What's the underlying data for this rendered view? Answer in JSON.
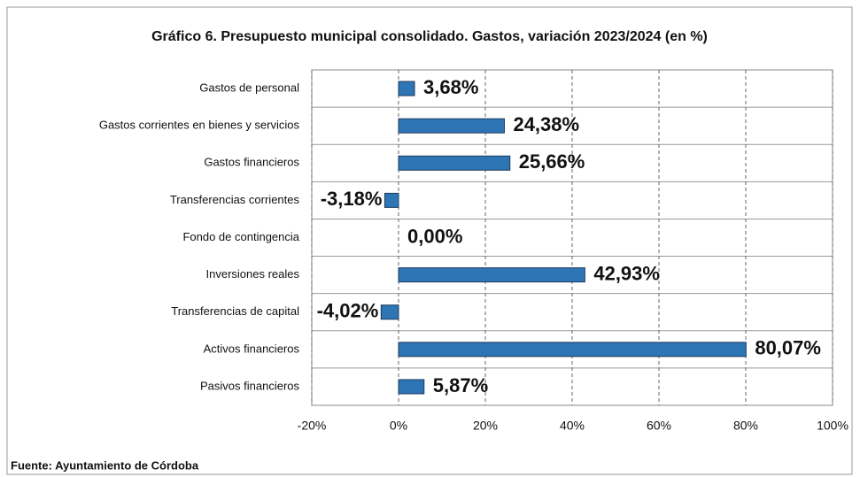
{
  "chart_data": {
    "type": "barh",
    "title": "Gráfico 6. Presupuesto municipal consolidado. Gastos, variación 2023/2024 (en %)",
    "source": "Fuente: Ayuntamiento de Córdoba",
    "categories": [
      "Gastos de personal",
      "Gastos corrientes en bienes y servicios",
      "Gastos financieros",
      "Transferencias corrientes",
      "Fondo de contingencia",
      "Inversiones reales",
      "Transferencias de capital",
      "Activos financieros",
      "Pasivos financieros"
    ],
    "values": [
      3.68,
      24.38,
      25.66,
      -3.18,
      0,
      42.93,
      -4.02,
      80.07,
      5.87
    ],
    "value_labels": [
      "3,68%",
      "24,38%",
      "25,66%",
      "-3,18%",
      "0,00%",
      "42,93%",
      "-4,02%",
      "80,07%",
      "5,87%"
    ],
    "color": "#2e75b6",
    "xlim": [
      -20,
      100
    ],
    "xticks": [
      {
        "value": -20,
        "label": "-20%"
      },
      {
        "value": 0,
        "label": "0%"
      },
      {
        "value": 20,
        "label": "20%"
      },
      {
        "value": 40,
        "label": "40%"
      },
      {
        "value": 60,
        "label": "60%"
      },
      {
        "value": 80,
        "label": "80%"
      },
      {
        "value": 100,
        "label": "100%"
      }
    ],
    "grid": true
  }
}
